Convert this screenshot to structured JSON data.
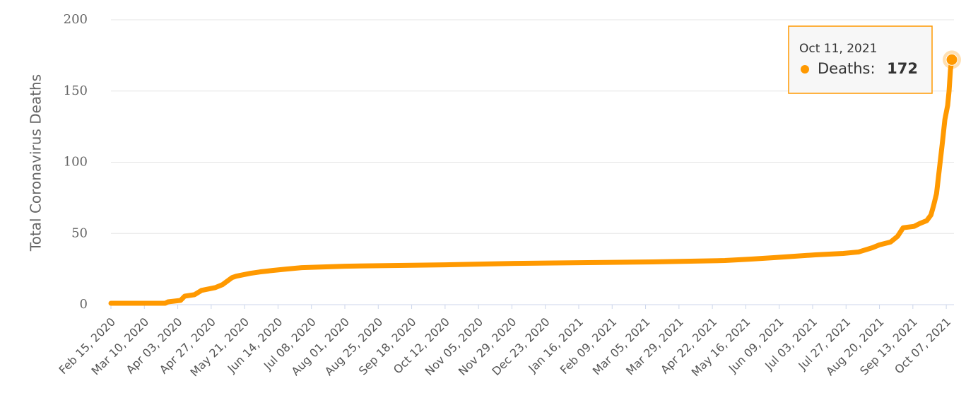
{
  "chart_data": {
    "type": "line",
    "y_axis_title": "Total Coronavirus Deaths",
    "x": [
      "Feb 15, 2020",
      "Mar 25, 2020",
      "Mar 27, 2020",
      "Apr 05, 2020",
      "Apr 08, 2020",
      "Apr 15, 2020",
      "Apr 20, 2020",
      "Apr 30, 2020",
      "May 05, 2020",
      "May 12, 2020",
      "May 15, 2020",
      "May 25, 2020",
      "Jun 01, 2020",
      "Jun 10, 2020",
      "Jun 20, 2020",
      "Jul 01, 2020",
      "Aug 01, 2020",
      "Oct 12, 2020",
      "Dec 01, 2020",
      "Mar 10, 2021",
      "May 01, 2021",
      "May 20, 2021",
      "Jun 05, 2021",
      "Jun 20, 2021",
      "Jul 05, 2021",
      "Jul 25, 2021",
      "Aug 05, 2021",
      "Aug 15, 2021",
      "Aug 20, 2021",
      "Aug 28, 2021",
      "Sep 02, 2021",
      "Sep 06, 2021",
      "Sep 14, 2021",
      "Sep 18, 2021",
      "Sep 23, 2021",
      "Sep 26, 2021",
      "Sep 28, 2021",
      "Sep 30, 2021",
      "Oct 02, 2021",
      "Oct 04, 2021",
      "Oct 06, 2021",
      "Oct 08, 2021",
      "Oct 09, 2021",
      "Oct 10, 2021",
      "Oct 11, 2021"
    ],
    "series": [
      {
        "name": "Deaths",
        "color": "#ff9900",
        "values": [
          1,
          1,
          2,
          3,
          6,
          7,
          10,
          12,
          14,
          19,
          20,
          22,
          23,
          24,
          25,
          26,
          27,
          28,
          29,
          30,
          31,
          32,
          33,
          34,
          35,
          36,
          37,
          40,
          42,
          44,
          48,
          54,
          55,
          57,
          59,
          63,
          70,
          78,
          95,
          112,
          130,
          140,
          150,
          165,
          172
        ]
      }
    ],
    "xlim": [
      "Feb 15, 2020",
      "Oct 11, 2021"
    ],
    "xticks": [
      "Feb 15, 2020",
      "Mar 10, 2020",
      "Apr 03, 2020",
      "Apr 27, 2020",
      "May 21, 2020",
      "Jun 14, 2020",
      "Jul 08, 2020",
      "Aug 01, 2020",
      "Aug 25, 2020",
      "Sep 18, 2020",
      "Oct 12, 2020",
      "Nov 05, 2020",
      "Nov 29, 2020",
      "Dec 23, 2020",
      "Jan 16, 2021",
      "Feb 09, 2021",
      "Mar 05, 2021",
      "Mar 29, 2021",
      "Apr 22, 2021",
      "May 16, 2021",
      "Jun 09, 2021",
      "Jul 03, 2021",
      "Jul 27, 2021",
      "Aug 20, 2021",
      "Sep 13, 2021",
      "Oct 07, 2021"
    ],
    "ylim": [
      0,
      200
    ],
    "yticks": [
      0,
      50,
      100,
      150,
      200
    ],
    "grid": true,
    "tooltip_label": "Deaths:"
  }
}
